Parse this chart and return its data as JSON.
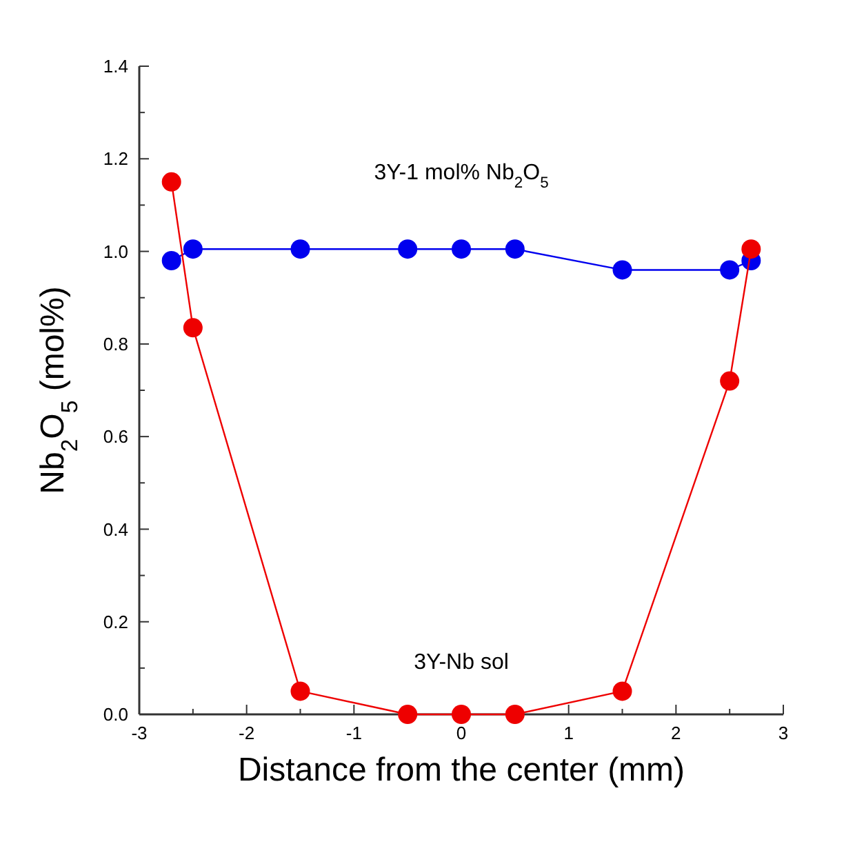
{
  "chart_data": {
    "type": "line",
    "xlabel": "Distance from the center (mm)",
    "ylabel": "Nb$_{2}$O$_{5}$ (mol%)",
    "xlim": [
      -3,
      3
    ],
    "ylim": [
      0,
      1.4
    ],
    "xticks": [
      -3,
      {
        "value": -2.5,
        "label": null
      },
      -2,
      {
        "value": -1.5,
        "label": null
      },
      -1,
      {
        "value": -0.5,
        "label": null
      },
      0,
      {
        "value": 0.5,
        "label": null
      },
      1,
      {
        "value": 1.5,
        "label": null
      },
      2,
      {
        "value": 2.5,
        "label": null
      },
      3
    ],
    "yticks": [
      {
        "value": 0,
        "label": "0.0"
      },
      {
        "value": 0.1,
        "label": null
      },
      {
        "value": 0.2,
        "label": "0.2"
      },
      {
        "value": 0.3,
        "label": null
      },
      {
        "value": 0.4,
        "label": "0.4"
      },
      {
        "value": 0.5,
        "label": null
      },
      {
        "value": 0.6,
        "label": "0.6"
      },
      {
        "value": 0.7,
        "label": null
      },
      {
        "value": 0.8,
        "label": "0.8"
      },
      {
        "value": 0.9,
        "label": null
      },
      {
        "value": 1.0,
        "label": "1.0"
      },
      {
        "value": 1.1,
        "label": null
      },
      {
        "value": 1.2,
        "label": "1.2"
      },
      {
        "value": 1.3,
        "label": null
      },
      {
        "value": 1.4,
        "label": "1.4"
      }
    ],
    "marker": "circle",
    "series": [
      {
        "color": "#0000ee",
        "x": [
          -2.7,
          -2.5,
          -1.5,
          -0.5,
          0,
          0.5,
          1.5,
          2.5,
          2.7
        ],
        "values": [
          0.98,
          1.005,
          1.005,
          1.005,
          1.005,
          1.005,
          0.96,
          0.96,
          0.98
        ]
      },
      {
        "color": "#ee0000",
        "x": [
          -2.7,
          -2.5,
          -1.5,
          -0.5,
          0,
          0.5,
          1.5,
          2.5,
          2.7
        ],
        "values": [
          1.15,
          0.835,
          0.05,
          0,
          0,
          0,
          0.05,
          0.72,
          1.005
        ]
      }
    ],
    "annotations": [
      "3Y-1 mol% Nb$_{2}$O$_{5}$",
      "3Y-Nb sol"
    ]
  }
}
